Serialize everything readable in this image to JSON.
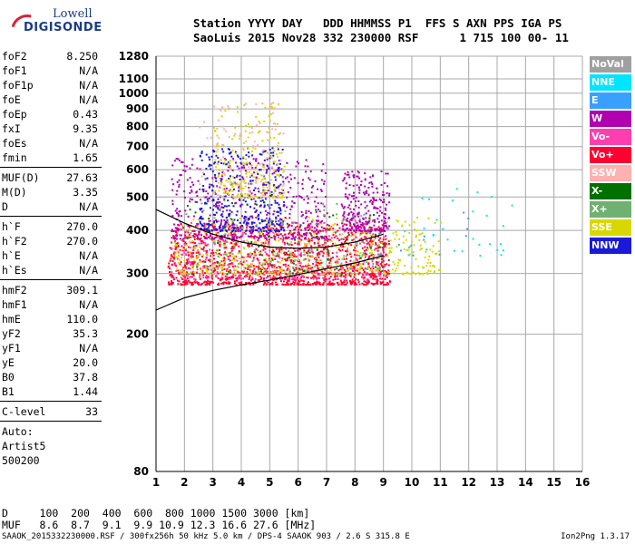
{
  "logo": {
    "line1": "Lowell",
    "line2": "DIGISONDE"
  },
  "header": {
    "line1": "Station YYYY DAY   DDD HHMMSS P1  FFS S AXN PPS IGA PS",
    "line2": "SaoLuis 2015 Nov28 332 230000 RSF      1 715 100 00- 11"
  },
  "params": {
    "group1": [
      {
        "name": "foF2",
        "value": "8.250"
      },
      {
        "name": "foF1",
        "value": "N/A"
      },
      {
        "name": "foF1p",
        "value": "N/A"
      },
      {
        "name": "foE",
        "value": "N/A"
      },
      {
        "name": "foEp",
        "value": "0.43"
      },
      {
        "name": "fxI",
        "value": "9.35"
      },
      {
        "name": "foEs",
        "value": "N/A"
      },
      {
        "name": "fmin",
        "value": "1.65"
      }
    ],
    "group2": [
      {
        "name": "MUF(D)",
        "value": "27.63"
      },
      {
        "name": "M(D)",
        "value": "3.35"
      },
      {
        "name": "D",
        "value": "N/A"
      }
    ],
    "group3": [
      {
        "name": "h`F",
        "value": "270.0"
      },
      {
        "name": "h`F2",
        "value": "270.0"
      },
      {
        "name": "h`E",
        "value": "N/A"
      },
      {
        "name": "h`Es",
        "value": "N/A"
      }
    ],
    "group4": [
      {
        "name": "hmF2",
        "value": "309.1"
      },
      {
        "name": "hmF1",
        "value": "N/A"
      },
      {
        "name": "hmE",
        "value": "110.0"
      },
      {
        "name": "yF2",
        "value": "35.3"
      },
      {
        "name": "yF1",
        "value": "N/A"
      },
      {
        "name": "yE",
        "value": "20.0"
      },
      {
        "name": "B0",
        "value": "37.8"
      },
      {
        "name": "B1",
        "value": "1.44"
      }
    ],
    "clevel": {
      "name": "C-level",
      "value": "33"
    },
    "auto": [
      "Auto:",
      "Artist5",
      "500200"
    ]
  },
  "bottom": {
    "d_row": "D     100  200  400  600  800 1000 1500 3000 [km]",
    "muf_row": "MUF   8.6  8.7  9.1  9.9 10.9 12.3 16.6 27.6 [MHz]",
    "footer_left": "SAAOK_2015332230000.RSF / 300fx256h 50 kHz 5.0 km / DPS-4 SAAOK 903 / 2.6 S 315.8 E",
    "footer_right": "Ion2Png 1.3.17"
  },
  "legend": [
    {
      "label": "NoVal",
      "color": "#a0a0a0"
    },
    {
      "label": "NNE",
      "color": "#00e5ff"
    },
    {
      "label": "E",
      "color": "#3aa0ff"
    },
    {
      "label": "W",
      "color": "#b000b0"
    },
    {
      "label": "Vo-",
      "color": "#ff3fb0"
    },
    {
      "label": "Vo+",
      "color": "#ff0030"
    },
    {
      "label": "SSW",
      "color": "#ffb0b0"
    },
    {
      "label": "X-",
      "color": "#007000"
    },
    {
      "label": "X+",
      "color": "#70b070"
    },
    {
      "label": "SSE",
      "color": "#d8d800"
    },
    {
      "label": "NNW",
      "color": "#1a1ad8"
    }
  ],
  "chart_data": {
    "type": "scatter",
    "title": "",
    "xlabel": "",
    "ylabel": "",
    "xlim": [
      1,
      16
    ],
    "ylim": [
      80,
      1280
    ],
    "y_scale": "log",
    "x_ticks": [
      1,
      2,
      3,
      4,
      5,
      6,
      7,
      8,
      9,
      10,
      11,
      12,
      13,
      14,
      15,
      16
    ],
    "y_ticks": [
      80,
      200,
      300,
      400,
      500,
      600,
      700,
      800,
      900,
      1000,
      1100,
      1280
    ],
    "grid": true,
    "clusters": [
      {
        "name": "Vo+",
        "x_range": [
          1.4,
          9.2
        ],
        "y_range": [
          280,
          420
        ],
        "count": 1400
      },
      {
        "name": "Vo-",
        "x_range": [
          1.5,
          9.0
        ],
        "y_range": [
          290,
          430
        ],
        "count": 350
      },
      {
        "name": "SSE",
        "x_range": [
          1.6,
          11.0
        ],
        "y_range": [
          300,
          440
        ],
        "count": 500
      },
      {
        "name": "W",
        "x_range": [
          1.5,
          7.0
        ],
        "y_range": [
          380,
          650
        ],
        "count": 500
      },
      {
        "name": "NNW",
        "x_range": [
          2.5,
          5.5
        ],
        "y_range": [
          400,
          700
        ],
        "count": 350
      },
      {
        "name": "W",
        "x_range": [
          7.5,
          9.2
        ],
        "y_range": [
          400,
          600
        ],
        "count": 250
      },
      {
        "name": "SSE",
        "x_range": [
          3.0,
          5.5
        ],
        "y_range": [
          500,
          950
        ],
        "count": 200
      },
      {
        "name": "X+",
        "x_range": [
          2.0,
          9.0
        ],
        "y_range": [
          300,
          500
        ],
        "count": 120
      },
      {
        "name": "X-",
        "x_range": [
          2.0,
          9.0
        ],
        "y_range": [
          300,
          500
        ],
        "count": 80
      },
      {
        "name": "SSW",
        "x_range": [
          2.5,
          5.5
        ],
        "y_range": [
          500,
          950
        ],
        "count": 120
      },
      {
        "name": "NNE",
        "x_range": [
          9.5,
          13.5
        ],
        "y_range": [
          340,
          540
        ],
        "count": 30
      },
      {
        "name": "E",
        "x_range": [
          8.0,
          12.0
        ],
        "y_range": [
          340,
          520
        ],
        "count": 20
      }
    ],
    "trace_lower": {
      "x": [
        1,
        2,
        3,
        4,
        5,
        6,
        7,
        8,
        9
      ],
      "y": [
        235,
        255,
        268,
        278,
        287,
        298,
        310,
        322,
        338
      ]
    },
    "trace_upper": {
      "x": [
        1,
        2,
        3,
        4,
        5,
        6,
        7,
        8,
        9
      ],
      "y": [
        460,
        420,
        390,
        370,
        358,
        355,
        358,
        370,
        390
      ]
    }
  }
}
